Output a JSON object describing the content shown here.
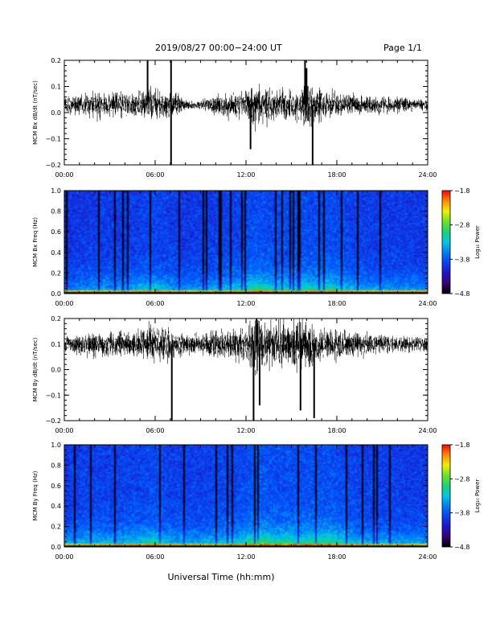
{
  "header": {
    "title": "2019/08/27  00:00−24:00 UT",
    "page": "Page 1/1"
  },
  "x_axis": {
    "label": "Universal Time (hh:mm)",
    "ticks": [
      "00:00",
      "06:00",
      "12:00",
      "18:00",
      "24:00"
    ],
    "range_hours": [
      0,
      24
    ]
  },
  "chart_data": [
    {
      "type": "line",
      "id": "bx-dbdt",
      "ylabel": "MCM Bx dB/dt (nT/sec)",
      "ylim": [
        -0.2,
        0.2
      ],
      "yticks": [
        "0.2",
        "0.1",
        "0.0",
        "−0.1",
        "−0.2"
      ],
      "yticks_values": [
        0.2,
        0.1,
        0.0,
        -0.1,
        -0.2
      ],
      "baseline": 0.03,
      "envelope": {
        "hours": [
          0,
          1,
          2,
          3,
          4,
          5,
          5.8,
          6.5,
          7,
          8,
          9,
          10,
          11,
          12,
          12.6,
          13,
          14,
          15,
          16,
          16.5,
          17,
          18,
          19,
          20,
          21,
          22,
          23,
          24
        ],
        "amplitude": [
          0.03,
          0.04,
          0.05,
          0.05,
          0.04,
          0.05,
          0.08,
          0.05,
          0.06,
          0.02,
          0.015,
          0.04,
          0.05,
          0.06,
          0.09,
          0.07,
          0.06,
          0.05,
          0.09,
          0.07,
          0.06,
          0.05,
          0.04,
          0.04,
          0.03,
          0.03,
          0.025,
          0.02
        ]
      },
      "spikes": [
        {
          "hour": 5.5,
          "y": 0.21
        },
        {
          "hour": 7.05,
          "y": 0.21
        },
        {
          "hour": 7.05,
          "y": -0.21
        },
        {
          "hour": 12.3,
          "y": -0.14
        },
        {
          "hour": 15.9,
          "y": 0.21
        },
        {
          "hour": 16.4,
          "y": -0.21
        },
        {
          "hour": 16.0,
          "y": 0.17
        }
      ]
    },
    {
      "type": "heatmap",
      "id": "bx-spectrogram",
      "ylabel": "MCM Bx Freq (Hz)",
      "ylim": [
        0.0,
        1.0
      ],
      "yticks": [
        "1.0",
        "0.8",
        "0.6",
        "0.4",
        "0.2",
        "0.0"
      ],
      "yticks_values": [
        1.0,
        0.8,
        0.6,
        0.4,
        0.2,
        0.0
      ],
      "colorbar": {
        "label": "Log₁₀ Power",
        "range": [
          -4.8,
          -1.8
        ],
        "ticks": [
          "−1.8",
          "−2.8",
          "−3.8",
          "−4.8"
        ],
        "ticks_values": [
          -1.8,
          -2.8,
          -3.8,
          -4.8
        ]
      },
      "activity": {
        "hours": [
          0,
          2,
          4,
          6,
          7,
          8,
          10,
          12,
          12.7,
          14,
          16,
          17.5,
          19,
          21,
          24
        ],
        "level": [
          0.4,
          0.5,
          0.5,
          0.7,
          0.55,
          0.45,
          0.55,
          0.7,
          0.85,
          0.7,
          0.75,
          0.8,
          0.6,
          0.5,
          0.45
        ]
      }
    },
    {
      "type": "line",
      "id": "by-dbdt",
      "ylabel": "MCM By dB/dt (nT/sec)",
      "ylim": [
        -0.2,
        0.2
      ],
      "yticks": [
        "0.2",
        "0.1",
        "0.0",
        "−0.1",
        "−0.2"
      ],
      "yticks_values": [
        0.2,
        0.1,
        0.0,
        -0.1,
        -0.2
      ],
      "baseline": 0.1,
      "envelope": {
        "hours": [
          0,
          1,
          2,
          3,
          4,
          5,
          6,
          6.5,
          7,
          8,
          9,
          10,
          11,
          12,
          12.4,
          12.7,
          13,
          14,
          15,
          15.5,
          16,
          16.5,
          17,
          18,
          19,
          20,
          21,
          22,
          23,
          24
        ],
        "amplitude": [
          0.03,
          0.04,
          0.05,
          0.05,
          0.05,
          0.06,
          0.07,
          0.08,
          0.06,
          0.04,
          0.04,
          0.06,
          0.06,
          0.08,
          0.12,
          0.15,
          0.1,
          0.09,
          0.1,
          0.12,
          0.1,
          0.08,
          0.07,
          0.06,
          0.05,
          0.04,
          0.04,
          0.03,
          0.03,
          0.03
        ]
      },
      "spikes": [
        {
          "hour": 7.1,
          "y": -0.21
        },
        {
          "hour": 12.5,
          "y": -0.2
        },
        {
          "hour": 12.9,
          "y": -0.14
        },
        {
          "hour": 16.5,
          "y": -0.19
        },
        {
          "hour": 15.6,
          "y": -0.16
        },
        {
          "hour": 12.7,
          "y": 0.21
        }
      ]
    },
    {
      "type": "heatmap",
      "id": "by-spectrogram",
      "ylabel": "MCM By Freq (Hz)",
      "ylim": [
        0.0,
        1.0
      ],
      "yticks": [
        "1.0",
        "0.8",
        "0.6",
        "0.4",
        "0.2",
        "0.0"
      ],
      "yticks_values": [
        1.0,
        0.8,
        0.6,
        0.4,
        0.2,
        0.0
      ],
      "colorbar": {
        "label": "Log₁₀ Power",
        "range": [
          -4.8,
          -1.8
        ],
        "ticks": [
          "−1.8",
          "−2.8",
          "−3.8",
          "−4.8"
        ],
        "ticks_values": [
          -1.8,
          -2.8,
          -3.8,
          -4.8
        ]
      },
      "activity": {
        "hours": [
          0,
          2,
          4,
          6,
          7,
          8,
          10,
          12,
          12.7,
          14,
          16,
          17.5,
          19,
          21,
          24
        ],
        "level": [
          0.5,
          0.6,
          0.6,
          0.75,
          0.6,
          0.55,
          0.6,
          0.75,
          0.95,
          0.8,
          0.8,
          0.85,
          0.65,
          0.55,
          0.5
        ]
      }
    }
  ]
}
